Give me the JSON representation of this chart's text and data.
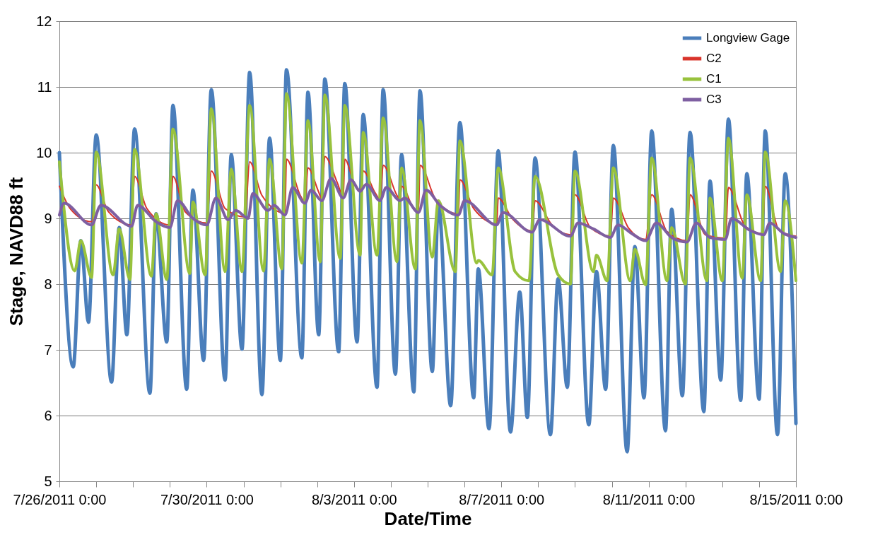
{
  "chart_data": {
    "type": "line",
    "xlabel": "Date/Time",
    "ylabel": "Stage, NAVD88 ft",
    "xlim": [
      "2011-07-26T00:00",
      "2011-08-15T00:00"
    ],
    "ylim": [
      5,
      12
    ],
    "yticks": [
      5,
      6,
      7,
      8,
      9,
      10,
      11,
      12
    ],
    "xticks": [
      {
        "value": "2011-07-26T00:00",
        "label": "7/26/2011 0:00"
      },
      {
        "value": "2011-07-27T00:00",
        "label": null
      },
      {
        "value": "2011-07-28T00:00",
        "label": null
      },
      {
        "value": "2011-07-29T00:00",
        "label": null
      },
      {
        "value": "2011-07-30T00:00",
        "label": "7/30/2011 0:00"
      },
      {
        "value": "2011-07-31T00:00",
        "label": null
      },
      {
        "value": "2011-08-01T00:00",
        "label": null
      },
      {
        "value": "2011-08-02T00:00",
        "label": null
      },
      {
        "value": "2011-08-03T00:00",
        "label": "8/3/2011 0:00"
      },
      {
        "value": "2011-08-04T00:00",
        "label": null
      },
      {
        "value": "2011-08-05T00:00",
        "label": null
      },
      {
        "value": "2011-08-06T00:00",
        "label": null
      },
      {
        "value": "2011-08-07T00:00",
        "label": "8/7/2011 0:00"
      },
      {
        "value": "2011-08-08T00:00",
        "label": null
      },
      {
        "value": "2011-08-09T00:00",
        "label": null
      },
      {
        "value": "2011-08-10T00:00",
        "label": null
      },
      {
        "value": "2011-08-11T00:00",
        "label": "8/11/2011 0:00"
      },
      {
        "value": "2011-08-12T00:00",
        "label": null
      },
      {
        "value": "2011-08-13T00:00",
        "label": null
      },
      {
        "value": "2011-08-14T00:00",
        "label": null
      },
      {
        "value": "2011-08-15T00:00",
        "label": "8/15/2011 0:00"
      }
    ],
    "grid": "y",
    "legend": "top right",
    "series": [
      {
        "name": "Longview Gage",
        "color": "#4a7ebb",
        "x": [
          "2011-07-26T00:00",
          "2011-07-26T09:00",
          "2011-07-26T14:00",
          "2011-07-26T19:00",
          "2011-07-27T00:00",
          "2011-07-27T10:00",
          "2011-07-27T15:00",
          "2011-07-27T20:00",
          "2011-07-28T01:00",
          "2011-07-28T11:00",
          "2011-07-28T15:00",
          "2011-07-28T22:00",
          "2011-07-29T02:00",
          "2011-07-29T11:00",
          "2011-07-29T15:00",
          "2011-07-29T22:00",
          "2011-07-30T03:00",
          "2011-07-30T12:00",
          "2011-07-30T16:00",
          "2011-07-30T23:00",
          "2011-07-31T04:00",
          "2011-07-31T12:00",
          "2011-07-31T17:00",
          "2011-08-01T00:00",
          "2011-08-01T04:00",
          "2011-08-01T14:00",
          "2011-08-01T18:00",
          "2011-08-02T01:00",
          "2011-08-02T05:00",
          "2011-08-02T14:00",
          "2011-08-02T18:00",
          "2011-08-03T02:00",
          "2011-08-03T06:00",
          "2011-08-03T15:00",
          "2011-08-03T19:00",
          "2011-08-04T03:00",
          "2011-08-04T07:00",
          "2011-08-04T15:00",
          "2011-08-04T19:00",
          "2011-08-05T03:00",
          "2011-08-05T07:00",
          "2011-08-05T15:00",
          "2011-08-05T21:00",
          "2011-08-06T06:00",
          "2011-08-06T09:00",
          "2011-08-06T16:00",
          "2011-08-06T22:00",
          "2011-08-07T06:00",
          "2011-08-07T12:00",
          "2011-08-07T17:00",
          "2011-08-07T22:00",
          "2011-08-08T08:00",
          "2011-08-08T13:00",
          "2011-08-08T19:00",
          "2011-08-09T00:00",
          "2011-08-09T09:00",
          "2011-08-09T14:00",
          "2011-08-09T20:00",
          "2011-08-10T01:00",
          "2011-08-10T10:00",
          "2011-08-10T15:00",
          "2011-08-10T21:00",
          "2011-08-11T02:00",
          "2011-08-11T11:00",
          "2011-08-11T15:00",
          "2011-08-11T22:00",
          "2011-08-12T03:00",
          "2011-08-12T12:00",
          "2011-08-12T16:00",
          "2011-08-12T23:00",
          "2011-08-13T04:00",
          "2011-08-13T12:00",
          "2011-08-13T16:00",
          "2011-08-14T00:00",
          "2011-08-14T04:00",
          "2011-08-14T12:00",
          "2011-08-14T17:00",
          "2011-08-15T00:00"
        ],
        "values": [
          10.0,
          6.74,
          8.66,
          7.42,
          10.27,
          6.51,
          8.86,
          7.23,
          10.36,
          6.34,
          9.07,
          7.12,
          10.72,
          6.4,
          9.43,
          6.84,
          10.96,
          6.54,
          9.97,
          7.01,
          11.22,
          6.32,
          10.22,
          6.84,
          11.26,
          6.88,
          10.92,
          7.23,
          11.12,
          6.97,
          11.05,
          7.12,
          10.58,
          6.43,
          10.96,
          6.63,
          9.97,
          6.36,
          10.94,
          6.67,
          9.22,
          6.15,
          10.46,
          6.27,
          8.23,
          5.8,
          10.03,
          5.75,
          7.88,
          5.97,
          9.92,
          5.71,
          8.08,
          6.43,
          10.01,
          5.86,
          8.19,
          6.4,
          10.11,
          5.45,
          8.57,
          6.27,
          10.33,
          5.77,
          9.14,
          6.3,
          10.31,
          6.06,
          9.57,
          6.54,
          10.51,
          6.23,
          9.68,
          6.25,
          10.33,
          5.71,
          9.68,
          5.88
        ]
      },
      {
        "name": "C2",
        "color": "#d9342b",
        "x": [
          "2011-07-26T00:00",
          "2011-07-26T07:00",
          "2011-07-26T21:00",
          "2011-07-27T00:00",
          "2011-07-27T08:00",
          "2011-07-27T23:00",
          "2011-07-28T01:00",
          "2011-07-28T09:00",
          "2011-07-29T00:00",
          "2011-07-29T02:00",
          "2011-07-29T10:00",
          "2011-07-30T00:00",
          "2011-07-30T03:00",
          "2011-07-30T12:00",
          "2011-07-31T01:00",
          "2011-07-31T04:00",
          "2011-07-31T12:00",
          "2011-08-01T03:00",
          "2011-08-01T04:00",
          "2011-08-01T13:00",
          "2011-08-01T16:00",
          "2011-08-01T18:00",
          "2011-08-02T01:00",
          "2011-08-02T03:00",
          "2011-08-02T05:00",
          "2011-08-02T13:00",
          "2011-08-02T17:00",
          "2011-08-02T18:00",
          "2011-08-03T00:00",
          "2011-08-03T04:00",
          "2011-08-03T06:00",
          "2011-08-03T14:00",
          "2011-08-03T17:00",
          "2011-08-03T19:00",
          "2011-08-04T04:00",
          "2011-08-04T06:00",
          "2011-08-04T07:00",
          "2011-08-04T15:00",
          "2011-08-04T18:00",
          "2011-08-04T19:00",
          "2011-08-05T05:00",
          "2011-08-05T20:00",
          "2011-08-05T21:00",
          "2011-08-06T06:00",
          "2011-08-06T21:00",
          "2011-08-06T22:00",
          "2011-08-07T07:00",
          "2011-08-07T20:00",
          "2011-08-07T22:00",
          "2011-08-08T09:00",
          "2011-08-08T21:00",
          "2011-08-09T00:00",
          "2011-08-09T10:00",
          "2011-08-09T23:00",
          "2011-08-10T01:00",
          "2011-08-10T11:00",
          "2011-08-10T22:00",
          "2011-08-11T02:00",
          "2011-08-11T12:00",
          "2011-08-12T01:00",
          "2011-08-12T03:00",
          "2011-08-12T13:00",
          "2011-08-13T02:00",
          "2011-08-13T04:00",
          "2011-08-13T15:00",
          "2011-08-14T02:00",
          "2011-08-14T04:00",
          "2011-08-14T13:00",
          "2011-08-15T00:00"
        ],
        "values": [
          9.49,
          9.15,
          8.95,
          9.51,
          9.1,
          8.9,
          9.64,
          9.15,
          8.9,
          9.64,
          9.1,
          8.93,
          9.72,
          9.15,
          9.02,
          9.86,
          9.35,
          9.08,
          9.9,
          9.35,
          9.25,
          9.77,
          9.4,
          9.3,
          9.94,
          9.55,
          9.33,
          9.9,
          9.55,
          9.43,
          9.72,
          9.38,
          9.29,
          9.81,
          9.35,
          9.28,
          9.49,
          9.15,
          9.1,
          9.81,
          9.3,
          9.07,
          9.59,
          9.15,
          8.92,
          9.31,
          9.0,
          8.81,
          9.27,
          8.9,
          8.75,
          9.36,
          8.86,
          8.73,
          9.31,
          8.85,
          8.68,
          9.36,
          8.8,
          8.66,
          9.36,
          8.75,
          8.7,
          9.47,
          8.88,
          8.77,
          9.49,
          8.82,
          8.73
        ]
      },
      {
        "name": "C1",
        "color": "#98c23d",
        "x": [
          "2011-07-26T00:00",
          "2011-07-26T10:00",
          "2011-07-26T14:00",
          "2011-07-26T21:00",
          "2011-07-27T00:00",
          "2011-07-27T11:00",
          "2011-07-27T15:00",
          "2011-07-27T22:00",
          "2011-07-28T01:00",
          "2011-07-28T12:00",
          "2011-07-28T15:00",
          "2011-07-28T22:00",
          "2011-07-29T02:00",
          "2011-07-29T13:00",
          "2011-07-29T15:00",
          "2011-07-29T23:00",
          "2011-07-30T03:00",
          "2011-07-30T12:00",
          "2011-07-30T16:00",
          "2011-07-30T23:00",
          "2011-07-31T04:00",
          "2011-07-31T13:00",
          "2011-07-31T17:00",
          "2011-08-01T01:00",
          "2011-08-01T04:00",
          "2011-08-01T14:00",
          "2011-08-01T18:00",
          "2011-08-02T02:00",
          "2011-08-02T05:00",
          "2011-08-02T15:00",
          "2011-08-02T18:00",
          "2011-08-03T04:00",
          "2011-08-03T06:00",
          "2011-08-03T15:00",
          "2011-08-03T19:00",
          "2011-08-04T04:00",
          "2011-08-04T07:00",
          "2011-08-04T16:00",
          "2011-08-04T19:00",
          "2011-08-05T03:00",
          "2011-08-05T07:00",
          "2011-08-05T18:00",
          "2011-08-05T21:00",
          "2011-08-06T08:00",
          "2011-08-06T09:00",
          "2011-08-06T18:00",
          "2011-08-06T22:00",
          "2011-08-07T09:00",
          "2011-08-07T18:00",
          "2011-08-07T22:00",
          "2011-08-08T13:00",
          "2011-08-08T21:00",
          "2011-08-09T00:00",
          "2011-08-09T12:00",
          "2011-08-09T14:00",
          "2011-08-09T21:00",
          "2011-08-10T01:00",
          "2011-08-10T12:00",
          "2011-08-10T15:00",
          "2011-08-10T22:00",
          "2011-08-11T02:00",
          "2011-08-11T12:00",
          "2011-08-11T15:00",
          "2011-08-12T00:00",
          "2011-08-12T03:00",
          "2011-08-12T14:00",
          "2011-08-12T16:00",
          "2011-08-13T00:00",
          "2011-08-13T04:00",
          "2011-08-13T13:00",
          "2011-08-13T16:00",
          "2011-08-14T01:00",
          "2011-08-14T04:00",
          "2011-08-14T14:00",
          "2011-08-14T17:00",
          "2011-08-15T00:00"
        ],
        "values": [
          9.86,
          8.2,
          8.66,
          8.1,
          10.01,
          8.14,
          8.84,
          8.07,
          10.05,
          8.12,
          9.07,
          8.07,
          10.36,
          8.16,
          9.25,
          8.14,
          10.67,
          8.19,
          9.75,
          8.19,
          10.72,
          8.2,
          9.9,
          8.23,
          10.9,
          8.32,
          10.49,
          8.34,
          10.88,
          8.39,
          10.72,
          8.44,
          10.31,
          8.44,
          10.53,
          8.34,
          9.77,
          8.23,
          10.49,
          8.41,
          9.27,
          8.19,
          10.18,
          8.32,
          8.36,
          8.14,
          9.77,
          8.19,
          8.05,
          9.64,
          8.14,
          8.0,
          9.72,
          8.19,
          8.44,
          8.05,
          9.77,
          8.05,
          8.53,
          7.99,
          9.92,
          8.05,
          8.86,
          8.0,
          9.92,
          8.05,
          9.31,
          8.05,
          10.22,
          8.09,
          9.36,
          8.05,
          10.01,
          8.19,
          9.27,
          8.05
        ]
      },
      {
        "name": "C3",
        "color": "#7e5fa1",
        "x": [
          "2011-07-26T00:00",
          "2011-07-26T03:00",
          "2011-07-26T21:00",
          "2011-07-27T03:00",
          "2011-07-27T23:00",
          "2011-07-28T03:00",
          "2011-07-28T15:00",
          "2011-07-29T00:00",
          "2011-07-29T05:00",
          "2011-07-29T15:00",
          "2011-07-30T00:00",
          "2011-07-30T06:00",
          "2011-07-30T14:00",
          "2011-07-30T19:00",
          "2011-07-31T03:00",
          "2011-07-31T06:00",
          "2011-07-31T16:00",
          "2011-07-31T20:00",
          "2011-08-01T03:00",
          "2011-08-01T08:00",
          "2011-08-01T16:00",
          "2011-08-01T20:00",
          "2011-08-02T03:00",
          "2011-08-02T09:00",
          "2011-08-02T17:00",
          "2011-08-02T22:00",
          "2011-08-03T04:00",
          "2011-08-03T08:00",
          "2011-08-03T17:00",
          "2011-08-03T21:00",
          "2011-08-04T06:00",
          "2011-08-04T09:00",
          "2011-08-04T18:00",
          "2011-08-04T23:00",
          "2011-08-05T08:00",
          "2011-08-05T20:00",
          "2011-08-06T00:00",
          "2011-08-06T21:00",
          "2011-08-07T01:00",
          "2011-08-07T20:00",
          "2011-08-08T01:00",
          "2011-08-08T21:00",
          "2011-08-09T02:00",
          "2011-08-09T12:00",
          "2011-08-09T23:00",
          "2011-08-10T04:00",
          "2011-08-10T13:00",
          "2011-08-10T22:00",
          "2011-08-11T05:00",
          "2011-08-11T15:00",
          "2011-08-12T01:00",
          "2011-08-12T07:00",
          "2011-08-12T16:00",
          "2011-08-13T02:00",
          "2011-08-13T06:00",
          "2011-08-13T18:00",
          "2011-08-14T03:00",
          "2011-08-14T07:00",
          "2011-08-14T16:00",
          "2011-08-15T00:00"
        ],
        "values": [
          9.05,
          9.23,
          8.9,
          9.2,
          8.88,
          9.2,
          8.95,
          8.86,
          9.27,
          9.0,
          8.9,
          9.31,
          8.98,
          9.12,
          9.0,
          9.38,
          9.12,
          9.2,
          9.05,
          9.47,
          9.23,
          9.43,
          9.27,
          9.61,
          9.31,
          9.59,
          9.41,
          9.52,
          9.27,
          9.47,
          9.27,
          9.31,
          9.09,
          9.43,
          9.2,
          9.05,
          9.27,
          8.9,
          9.09,
          8.79,
          8.98,
          8.73,
          8.93,
          8.84,
          8.71,
          8.9,
          8.77,
          8.66,
          8.93,
          8.71,
          8.64,
          8.93,
          8.71,
          8.68,
          9.0,
          8.82,
          8.75,
          8.93,
          8.77,
          8.71
        ]
      }
    ]
  }
}
